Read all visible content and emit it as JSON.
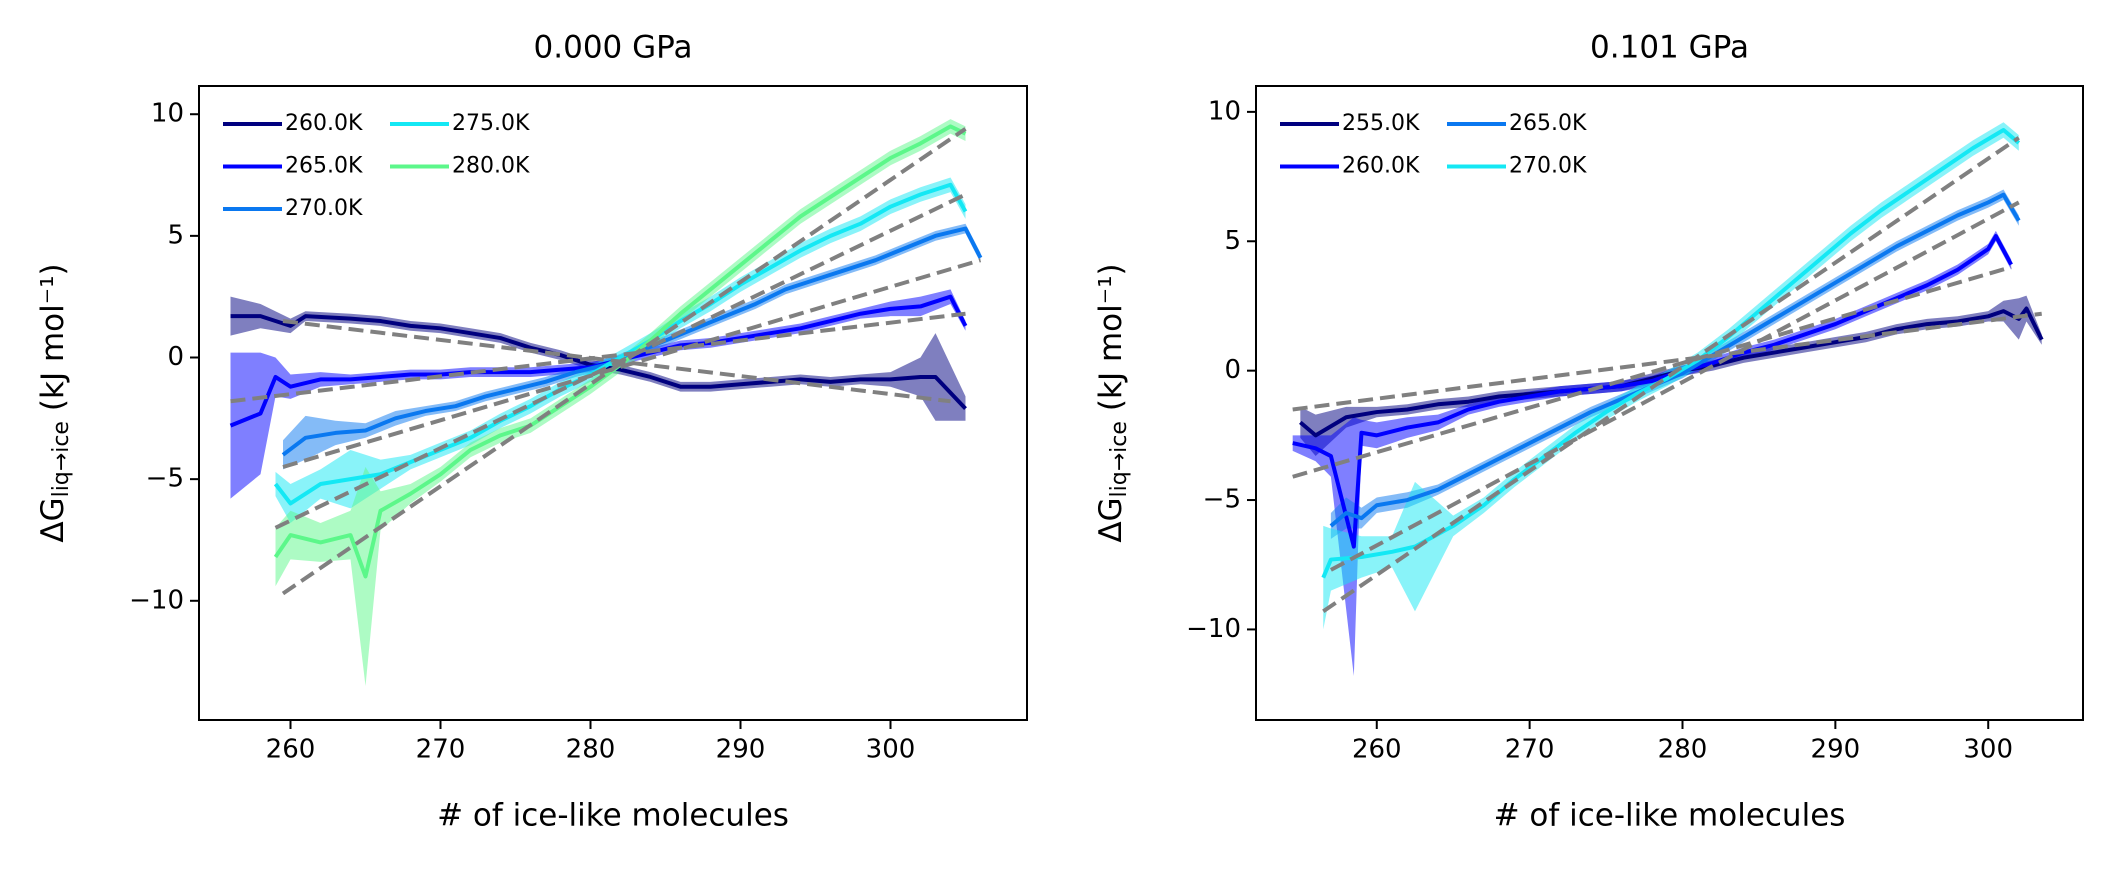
{
  "chart_data": [
    {
      "type": "line",
      "title": "0.000 GPa",
      "xlabel": "# of ice-like molecules",
      "ylabel": {
        "main": "ΔG",
        "sub": "liq→ice",
        "unit": "(kJ mol⁻¹)"
      },
      "xlim": [
        253.9,
        309.1
      ],
      "ylim": [
        -14.9,
        11.16
      ],
      "xticks": [
        260,
        270,
        280,
        290,
        300
      ],
      "yticks": [
        {
          "value": -10,
          "label": "−10"
        },
        {
          "value": -5,
          "label": "−5"
        },
        0,
        5,
        10
      ],
      "legend": "upper left",
      "series": [
        {
          "name": "260.0K",
          "color": "#00007f",
          "x": [
            256,
            258,
            260,
            261,
            264,
            266,
            268,
            270,
            272,
            274,
            276,
            278,
            280,
            282,
            284,
            286,
            288,
            290,
            292,
            294,
            296,
            298,
            300,
            302,
            303,
            305
          ],
          "values": [
            1.7,
            1.7,
            1.3,
            1.7,
            1.6,
            1.5,
            1.3,
            1.2,
            1.0,
            0.8,
            0.4,
            0.1,
            -0.3,
            -0.5,
            -0.8,
            -1.2,
            -1.2,
            -1.1,
            -1.0,
            -0.9,
            -1.0,
            -0.9,
            -0.9,
            -0.8,
            -0.8,
            -2.1
          ],
          "error": [
            0.8,
            0.5,
            0.3,
            0.2,
            0.2,
            0.2,
            0.2,
            0.2,
            0.2,
            0.2,
            0.2,
            0.2,
            0.2,
            0.2,
            0.2,
            0.2,
            0.2,
            0.2,
            0.2,
            0.2,
            0.2,
            0.2,
            0.3,
            0.8,
            1.8,
            0.5
          ]
        },
        {
          "name": "265.0K",
          "color": "#0000ff",
          "x": [
            256,
            258,
            259,
            260,
            262,
            264,
            266,
            268,
            270,
            272,
            274,
            276,
            278,
            280,
            282,
            284,
            286,
            288,
            290,
            292,
            294,
            296,
            298,
            300,
            302,
            304,
            305
          ],
          "values": [
            -2.8,
            -2.3,
            -0.8,
            -1.2,
            -0.9,
            -0.9,
            -0.8,
            -0.7,
            -0.7,
            -0.6,
            -0.6,
            -0.6,
            -0.5,
            -0.4,
            -0.1,
            0.2,
            0.5,
            0.6,
            0.8,
            1.0,
            1.2,
            1.5,
            1.8,
            2.0,
            2.1,
            2.5,
            1.3
          ],
          "error": [
            3.0,
            2.5,
            0.8,
            0.5,
            0.3,
            0.2,
            0.2,
            0.2,
            0.2,
            0.2,
            0.2,
            0.2,
            0.2,
            0.2,
            0.2,
            0.2,
            0.2,
            0.2,
            0.2,
            0.2,
            0.2,
            0.2,
            0.2,
            0.3,
            0.4,
            0.3,
            0.2
          ]
        },
        {
          "name": "270.0K",
          "color": "#0a78f0",
          "x": [
            259.5,
            261,
            263,
            265,
            267,
            269,
            271,
            273,
            275,
            277,
            279,
            281,
            283,
            285,
            287,
            289,
            291,
            293,
            295,
            297,
            299,
            301,
            303,
            305,
            306
          ],
          "values": [
            -4.0,
            -3.3,
            -3.1,
            -3.0,
            -2.5,
            -2.2,
            -2.0,
            -1.6,
            -1.3,
            -1.0,
            -0.6,
            -0.3,
            0.2,
            0.7,
            1.2,
            1.7,
            2.2,
            2.8,
            3.2,
            3.6,
            4.0,
            4.5,
            5.0,
            5.3,
            4.1
          ],
          "error": [
            0.6,
            0.9,
            0.5,
            0.3,
            0.3,
            0.2,
            0.2,
            0.2,
            0.2,
            0.2,
            0.2,
            0.2,
            0.2,
            0.2,
            0.2,
            0.2,
            0.2,
            0.2,
            0.2,
            0.2,
            0.2,
            0.2,
            0.2,
            0.2,
            0.2
          ]
        },
        {
          "name": "275.0K",
          "color": "#14e8f4",
          "x": [
            259,
            260,
            262,
            264,
            266,
            268,
            270,
            272,
            274,
            276,
            278,
            280,
            282,
            284,
            286,
            288,
            290,
            292,
            294,
            296,
            298,
            300,
            302,
            304,
            305
          ],
          "values": [
            -5.2,
            -6.0,
            -5.2,
            -5.0,
            -4.8,
            -4.3,
            -3.8,
            -3.3,
            -2.6,
            -2.0,
            -1.3,
            -0.7,
            0.0,
            0.7,
            1.5,
            2.2,
            3.0,
            3.7,
            4.4,
            5.0,
            5.5,
            6.2,
            6.7,
            7.1,
            6.0
          ],
          "error": [
            0.5,
            0.8,
            0.6,
            1.2,
            0.6,
            0.3,
            0.3,
            0.3,
            0.3,
            0.3,
            0.3,
            0.3,
            0.3,
            0.3,
            0.3,
            0.3,
            0.3,
            0.3,
            0.3,
            0.3,
            0.3,
            0.3,
            0.3,
            0.3,
            0.3
          ]
        },
        {
          "name": "280.0K",
          "color": "#5cf78a",
          "x": [
            259,
            260,
            262,
            264,
            265,
            266,
            268,
            270,
            272,
            274,
            276,
            278,
            280,
            282,
            284,
            286,
            288,
            290,
            292,
            294,
            296,
            298,
            300,
            302,
            304,
            305
          ],
          "values": [
            -8.2,
            -7.3,
            -7.6,
            -7.3,
            -9.0,
            -6.3,
            -5.6,
            -4.8,
            -3.8,
            -3.2,
            -2.8,
            -2.0,
            -1.2,
            -0.3,
            0.7,
            1.8,
            2.8,
            3.8,
            4.8,
            5.8,
            6.6,
            7.4,
            8.2,
            8.8,
            9.5,
            9.2
          ],
          "error": [
            1.2,
            1.0,
            0.8,
            1.0,
            4.5,
            0.8,
            0.4,
            0.3,
            0.3,
            0.3,
            0.3,
            0.3,
            0.3,
            0.3,
            0.3,
            0.3,
            0.3,
            0.3,
            0.3,
            0.3,
            0.3,
            0.3,
            0.3,
            0.3,
            0.3,
            0.3
          ]
        }
      ],
      "fits": {
        "color": "#808080",
        "lines": [
          {
            "x": [
              259.5,
              304
            ],
            "values": [
              1.5,
              -1.8
            ]
          },
          {
            "x": [
              256,
              305
            ],
            "values": [
              -1.8,
              1.8
            ]
          },
          {
            "x": [
              259.5,
              306
            ],
            "values": [
              -4.5,
              4.0
            ]
          },
          {
            "x": [
              259,
              305
            ],
            "values": [
              -7.0,
              6.7
            ]
          },
          {
            "x": [
              259.5,
              305
            ],
            "values": [
              -9.7,
              9.4
            ]
          }
        ]
      }
    },
    {
      "type": "line",
      "title": "0.101 GPa",
      "xlabel": "# of ice-like molecules",
      "ylabel": {
        "main": "ΔG",
        "sub": "liq→ice",
        "unit": "(kJ mol⁻¹)"
      },
      "xlim": [
        252.1,
        306.2
      ],
      "ylim": [
        -13.5,
        11.0
      ],
      "xticks": [
        260,
        270,
        280,
        290,
        300
      ],
      "yticks": [
        {
          "value": -10,
          "label": "−10"
        },
        {
          "value": -5,
          "label": "−5"
        },
        0,
        5,
        10
      ],
      "legend": "upper left",
      "series": [
        {
          "name": "255.0K",
          "color": "#00007f",
          "x": [
            255,
            256,
            258,
            260,
            262,
            264,
            266,
            268,
            270,
            272,
            274,
            276,
            278,
            280,
            282,
            284,
            286,
            288,
            290,
            292,
            294,
            296,
            298,
            300,
            301,
            302,
            302.5,
            303.5
          ],
          "values": [
            -2.0,
            -2.5,
            -1.8,
            -1.6,
            -1.5,
            -1.3,
            -1.2,
            -1.0,
            -0.9,
            -0.8,
            -0.7,
            -0.6,
            -0.3,
            0.0,
            0.2,
            0.5,
            0.7,
            0.9,
            1.1,
            1.3,
            1.6,
            1.8,
            1.9,
            2.1,
            2.3,
            2.0,
            2.4,
            1.2
          ],
          "error": [
            0.6,
            0.8,
            0.4,
            0.2,
            0.2,
            0.2,
            0.2,
            0.2,
            0.2,
            0.2,
            0.2,
            0.2,
            0.2,
            0.2,
            0.2,
            0.2,
            0.2,
            0.2,
            0.2,
            0.2,
            0.2,
            0.2,
            0.2,
            0.2,
            0.4,
            0.8,
            0.5,
            0.2
          ]
        },
        {
          "name": "260.0K",
          "color": "#0000ff",
          "x": [
            254.5,
            256,
            257,
            258.5,
            259,
            260,
            262,
            264,
            266,
            268,
            270,
            272,
            274,
            276,
            278,
            280,
            282,
            284,
            286,
            288,
            290,
            292,
            294,
            296,
            298,
            300,
            300.5,
            301.5
          ],
          "values": [
            -2.8,
            -3.0,
            -3.3,
            -6.8,
            -2.4,
            -2.5,
            -2.2,
            -2.0,
            -1.5,
            -1.2,
            -1.0,
            -0.8,
            -0.7,
            -0.6,
            -0.4,
            0.0,
            0.3,
            0.7,
            1.0,
            1.4,
            1.8,
            2.3,
            2.8,
            3.3,
            3.9,
            4.7,
            5.2,
            4.1
          ],
          "error": [
            0.3,
            0.5,
            0.8,
            5.0,
            0.5,
            0.5,
            0.4,
            0.3,
            0.2,
            0.2,
            0.2,
            0.2,
            0.2,
            0.2,
            0.2,
            0.2,
            0.2,
            0.2,
            0.2,
            0.2,
            0.2,
            0.2,
            0.2,
            0.2,
            0.2,
            0.2,
            0.2,
            0.2
          ]
        },
        {
          "name": "265.0K",
          "color": "#0a78f0",
          "x": [
            257,
            258,
            259,
            260,
            262,
            264,
            266,
            268,
            270,
            272,
            274,
            276,
            278,
            280,
            282,
            284,
            286,
            288,
            290,
            292,
            294,
            296,
            298,
            300,
            301,
            302
          ],
          "values": [
            -6.0,
            -5.5,
            -5.7,
            -5.2,
            -5.0,
            -4.6,
            -4.0,
            -3.4,
            -2.8,
            -2.2,
            -1.6,
            -1.1,
            -0.6,
            -0.1,
            0.6,
            1.3,
            2.0,
            2.7,
            3.4,
            4.1,
            4.8,
            5.4,
            6.0,
            6.5,
            6.8,
            5.8
          ],
          "error": [
            0.5,
            0.6,
            0.4,
            0.3,
            0.3,
            0.2,
            0.2,
            0.2,
            0.2,
            0.2,
            0.2,
            0.2,
            0.2,
            0.2,
            0.2,
            0.2,
            0.2,
            0.2,
            0.2,
            0.2,
            0.2,
            0.2,
            0.2,
            0.2,
            0.2,
            0.2
          ]
        },
        {
          "name": "270.0K",
          "color": "#14e8f4",
          "x": [
            256.5,
            257,
            259,
            261,
            262.5,
            265,
            267,
            269,
            271,
            273,
            275,
            277,
            279,
            281,
            283,
            285,
            287,
            289,
            291,
            293,
            295,
            297,
            299,
            301,
            302
          ],
          "values": [
            -8.0,
            -7.3,
            -7.2,
            -7.0,
            -6.8,
            -6.0,
            -5.2,
            -4.2,
            -3.3,
            -2.4,
            -1.6,
            -0.9,
            -0.3,
            0.4,
            1.3,
            2.3,
            3.3,
            4.3,
            5.3,
            6.2,
            7.0,
            7.8,
            8.6,
            9.3,
            8.8
          ],
          "error": [
            2.0,
            1.2,
            0.8,
            0.6,
            2.5,
            0.4,
            0.3,
            0.3,
            0.3,
            0.3,
            0.3,
            0.3,
            0.3,
            0.3,
            0.3,
            0.3,
            0.3,
            0.3,
            0.3,
            0.3,
            0.3,
            0.3,
            0.3,
            0.3,
            0.3
          ]
        }
      ],
      "fits": {
        "color": "#808080",
        "lines": [
          {
            "x": [
              254.5,
              303.5
            ],
            "values": [
              -1.5,
              2.2
            ]
          },
          {
            "x": [
              254.5,
              301.5
            ],
            "values": [
              -4.1,
              4.0
            ]
          },
          {
            "x": [
              257,
              302
            ],
            "values": [
              -7.7,
              6.5
            ]
          },
          {
            "x": [
              256.5,
              302
            ],
            "values": [
              -9.3,
              9.0
            ]
          }
        ]
      }
    }
  ]
}
